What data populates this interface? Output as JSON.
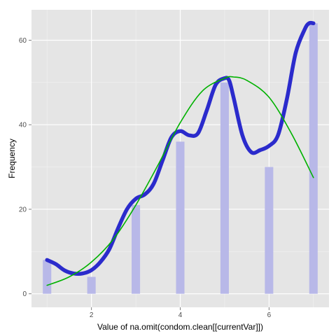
{
  "chart_data": {
    "type": "bar",
    "xlabel": "Value of na.omit(condom.clean[[currentVar]])",
    "ylabel": "Frequency",
    "xlim": [
      0.65,
      7.35
    ],
    "ylim": [
      -3.2,
      67.2
    ],
    "x_ticks": [
      2,
      4,
      6
    ],
    "y_ticks": [
      0,
      20,
      40,
      60
    ],
    "grid": true,
    "legend": "none",
    "bar_color": "#b8b8e8",
    "panel_background": "#e5e5e5",
    "bars": {
      "x": [
        1,
        2,
        3,
        4,
        5,
        6,
        7
      ],
      "values": [
        8,
        4,
        21,
        36,
        50,
        30,
        64
      ]
    },
    "series": [
      {
        "type": "density-line",
        "color": "#2b2bcc",
        "x": [
          1.0,
          1.2,
          1.4,
          1.6,
          1.8,
          2.0,
          2.2,
          2.4,
          2.6,
          2.8,
          3.0,
          3.2,
          3.4,
          3.6,
          3.8,
          4.0,
          4.2,
          4.4,
          4.6,
          4.8,
          5.0,
          5.1,
          5.2,
          5.4,
          5.6,
          5.8,
          6.0,
          6.2,
          6.4,
          6.6,
          6.8,
          6.9,
          7.0
        ],
        "values": [
          8.0,
          7.0,
          5.5,
          4.8,
          4.8,
          5.6,
          7.5,
          10.5,
          15.5,
          20.0,
          22.5,
          23.5,
          26.0,
          31.5,
          37.0,
          38.5,
          37.5,
          38.0,
          43.5,
          49.5,
          51.0,
          50.5,
          46.5,
          37.5,
          33.5,
          34.0,
          35.0,
          37.5,
          46.0,
          57.0,
          62.5,
          64.0,
          64.0
        ]
      },
      {
        "type": "normal-fit-line",
        "color": "#00b200",
        "x": [
          1.0,
          1.5,
          2.0,
          2.5,
          3.0,
          3.5,
          4.0,
          4.5,
          5.0,
          5.2,
          5.5,
          6.0,
          6.5,
          7.0
        ],
        "values": [
          2.0,
          4.0,
          7.5,
          13.0,
          21.0,
          30.5,
          40.5,
          48.0,
          51.0,
          51.3,
          50.5,
          46.5,
          38.0,
          27.5
        ]
      }
    ]
  }
}
